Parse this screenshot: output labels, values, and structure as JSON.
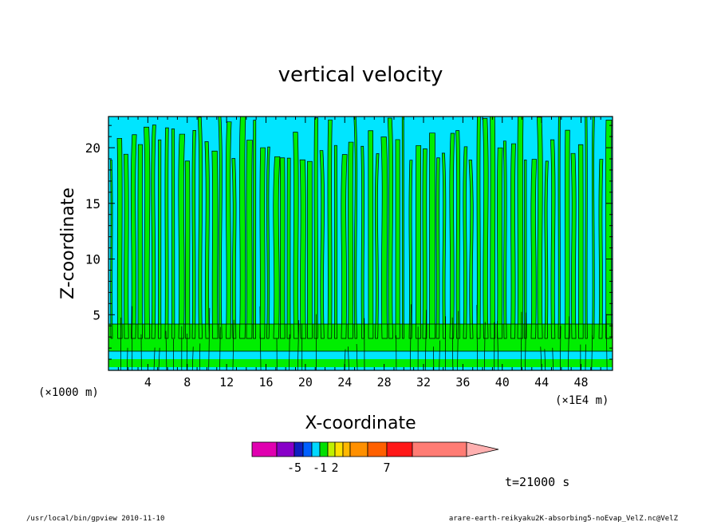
{
  "chart_data": {
    "type": "heatmap",
    "title": "vertical velocity",
    "xlabel": "X-coordinate",
    "ylabel": "Z-coordinate",
    "x_ticks": [
      "4",
      "8",
      "12",
      "16",
      "20",
      "24",
      "28",
      "32",
      "36",
      "40",
      "44",
      "48"
    ],
    "x_tick_values": [
      4,
      8,
      12,
      16,
      20,
      24,
      28,
      32,
      36,
      40,
      44,
      48
    ],
    "y_ticks": [
      "5",
      "10",
      "15",
      "20"
    ],
    "y_tick_values": [
      5,
      10,
      15,
      20
    ],
    "xlim": [
      0,
      51.2
    ],
    "ylim": [
      0,
      22.8
    ],
    "x_unit_left": "(×1000 m)",
    "x_unit_right": "(×1E4 m)",
    "field_colors": {
      "negative": "#00e5ff",
      "positive": "#00ee00",
      "contour": "#000000"
    },
    "colorbar": {
      "colors": [
        "#e000b0",
        "#8800c8",
        "#1020c0",
        "#0060ff",
        "#00d8ff",
        "#00e000",
        "#c0f000",
        "#ffe000",
        "#ffb800",
        "#ff9000",
        "#ff6000",
        "#ff1818",
        "#ff7c74"
      ],
      "extend_color": "#ffb0b0",
      "labels": [
        "-5",
        "-1",
        "2",
        "7"
      ]
    },
    "time_label": "t=21000 s"
  },
  "footer": {
    "left": "/usr/local/bin/gpview  2010-11-10",
    "right": "arare-earth-reikyaku2K-absorbing5-noEvap_VelZ.nc@VelZ"
  }
}
